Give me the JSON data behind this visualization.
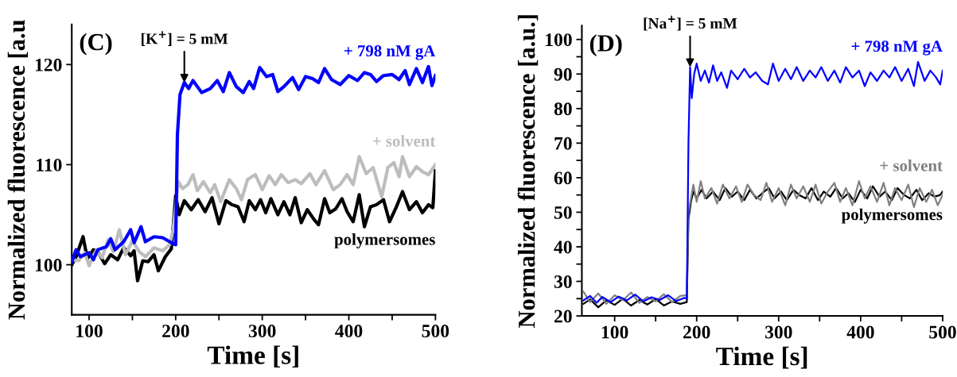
{
  "chart_data": [
    {
      "type": "line",
      "xlabel": "Time [s]",
      "ylabel": "Normalized fluorescence [a.u",
      "xlim": [
        80,
        500
      ],
      "ylim": [
        95,
        124
      ],
      "xticks": [
        100,
        {
          "value": 150,
          "label": null
        },
        200,
        {
          "value": 250,
          "label": null
        },
        300,
        {
          "value": 350,
          "label": null
        },
        400,
        {
          "value": 450,
          "label": null
        },
        500
      ],
      "yticks": [
        100,
        110,
        120
      ],
      "grid": false,
      "legend": false,
      "marker": "none",
      "line_style": "solid",
      "annotations": [
        "(C)",
        {
          "text": "[K$^{+}$] = 5 mM",
          "x": 210,
          "y": 118.2
        }
      ],
      "series": [
        {
          "name": "+ 798 nM gA",
          "color": "#0000ff",
          "x": [
            80,
            85,
            90,
            100,
            105,
            110,
            120,
            125,
            130,
            140,
            148,
            152,
            160,
            165,
            175,
            185,
            195,
            200,
            202,
            205,
            210,
            215,
            220,
            230,
            240,
            248,
            255,
            262,
            270,
            278,
            285,
            290,
            297,
            305,
            312,
            318,
            325,
            335,
            342,
            350,
            358,
            365,
            372,
            380,
            390,
            400,
            410,
            418,
            425,
            432,
            440,
            450,
            458,
            465,
            470,
            478,
            485,
            492,
            496,
            500
          ],
          "values": [
            100.3,
            101.5,
            100.8,
            101.2,
            100.5,
            101.5,
            101.8,
            102.6,
            101.5,
            102.3,
            103.5,
            102.2,
            103.8,
            102.3,
            102.8,
            102.7,
            102.2,
            102.0,
            113,
            117,
            118.2,
            117.6,
            118.4,
            117.2,
            117.6,
            118.4,
            117.3,
            119.2,
            117.8,
            117.2,
            118.3,
            117.6,
            119.7,
            118.8,
            119.0,
            117.3,
            117.8,
            118.7,
            117.5,
            118.8,
            118.6,
            118.2,
            119.6,
            118.5,
            118.0,
            118.9,
            118.4,
            119.2,
            119.0,
            118.3,
            118.9,
            119.0,
            118.5,
            119.4,
            118.0,
            119.6,
            118.2,
            119.8,
            117.9,
            118.9
          ]
        },
        {
          "name": "+ solvent",
          "color": "#bdbdbd",
          "x": [
            80,
            88,
            95,
            100,
            108,
            115,
            122,
            128,
            135,
            142,
            150,
            158,
            165,
            175,
            185,
            193,
            197,
            200,
            203,
            208,
            214,
            220,
            225,
            232,
            240,
            245,
            252,
            262,
            270,
            276,
            283,
            292,
            300,
            308,
            315,
            322,
            330,
            338,
            345,
            355,
            362,
            372,
            382,
            390,
            398,
            405,
            412,
            420,
            428,
            438,
            445,
            452,
            458,
            462,
            470,
            478,
            485,
            492,
            500
          ],
          "values": [
            100.5,
            100.4,
            101.2,
            99.9,
            101.4,
            100.7,
            102.5,
            101.3,
            103.5,
            101.0,
            102.4,
            101.3,
            100.8,
            101.7,
            101.4,
            102.0,
            103.5,
            105.8,
            108.3,
            107.6,
            108.0,
            109.0,
            107.4,
            108.3,
            107.2,
            108.0,
            106.3,
            108.5,
            107.6,
            106.5,
            108.5,
            109.0,
            107.5,
            108.9,
            108.0,
            109.0,
            108.2,
            108.5,
            108.1,
            109.1,
            108.0,
            109.4,
            107.5,
            108.0,
            109.0,
            108.0,
            110.8,
            109.1,
            109.7,
            106.8,
            109.7,
            110.2,
            108.8,
            110.8,
            108.8,
            109.8,
            109.3,
            109.0,
            110.0
          ]
        },
        {
          "name": "polymersomes",
          "color": "#000000",
          "x": [
            80,
            85,
            93,
            98,
            105,
            110,
            118,
            125,
            133,
            140,
            148,
            152,
            156,
            162,
            168,
            175,
            180,
            188,
            195,
            200,
            204,
            210,
            218,
            226,
            234,
            242,
            250,
            258,
            265,
            272,
            279,
            285,
            292,
            298,
            304,
            310,
            318,
            325,
            332,
            338,
            345,
            352,
            360,
            365,
            372,
            378,
            385,
            392,
            398,
            405,
            412,
            418,
            425,
            432,
            440,
            447,
            455,
            462,
            470,
            478,
            485,
            492,
            497,
            500
          ],
          "values": [
            100.0,
            100.8,
            102.8,
            100.6,
            101.5,
            101.3,
            100.1,
            101.0,
            100.5,
            101.7,
            100.9,
            101.4,
            98.4,
            100.4,
            100.3,
            101.0,
            99.4,
            100.8,
            101.6,
            106.9,
            105.0,
            106.4,
            105.5,
            106.5,
            105.3,
            106.7,
            104.1,
            106.4,
            106.0,
            105.8,
            104.3,
            106.4,
            105.5,
            106.5,
            105.2,
            106.6,
            105.0,
            106.3,
            105.0,
            106.7,
            104.2,
            105.5,
            104.5,
            104.0,
            106.6,
            105.2,
            105.6,
            106.6,
            105.3,
            104.3,
            107.0,
            103.8,
            105.8,
            106.0,
            106.5,
            104.3,
            105.8,
            107.3,
            105.5,
            106.3,
            105.2,
            106.0,
            105.7,
            109.4
          ]
        }
      ]
    },
    {
      "type": "line",
      "xlabel": "Time [s]",
      "ylabel": "Normalized fluorescence [a.u.]",
      "xlim": [
        60,
        500
      ],
      "ylim": [
        20,
        104
      ],
      "xticks": [
        100,
        {
          "value": 150,
          "label": null
        },
        200,
        {
          "value": 250,
          "label": null
        },
        300,
        {
          "value": 350,
          "label": null
        },
        400,
        {
          "value": 450,
          "label": null
        },
        500
      ],
      "yticks": [
        20,
        {
          "value": 25,
          "label": null
        },
        30,
        {
          "value": 35,
          "label": null
        },
        40,
        {
          "value": 45,
          "label": null
        },
        50,
        {
          "value": 55,
          "label": null
        },
        60,
        {
          "value": 65,
          "label": null
        },
        70,
        {
          "value": 75,
          "label": null
        },
        80,
        {
          "value": 85,
          "label": null
        },
        90,
        {
          "value": 95,
          "label": null
        },
        100
      ],
      "grid": false,
      "legend": false,
      "marker": "none",
      "line_style": "solid",
      "annotations": [
        "(D)",
        {
          "text": "[Na$^{+}$] = 5 mM",
          "x": 192,
          "y": 92
        }
      ],
      "series": [
        {
          "name": "+ 798 nM gA",
          "color": "#0000ff",
          "x": [
            62,
            70,
            78,
            85,
            95,
            105,
            115,
            125,
            135,
            145,
            155,
            165,
            175,
            185,
            188,
            190,
            192,
            194,
            197,
            200,
            205,
            210,
            215,
            220,
            225,
            230,
            237,
            242,
            250,
            258,
            265,
            272,
            280,
            287,
            293,
            300,
            308,
            315,
            322,
            330,
            338,
            345,
            352,
            360,
            368,
            375,
            382,
            390,
            398,
            405,
            412,
            420,
            428,
            435,
            442,
            450,
            458,
            465,
            470,
            478,
            485,
            492,
            497,
            500
          ],
          "values": [
            24.5,
            25.8,
            23.8,
            25.5,
            24.0,
            25.6,
            24.5,
            26.2,
            24.2,
            25.4,
            24.6,
            26.0,
            24.3,
            25.2,
            25.0,
            70,
            92,
            83,
            90,
            93,
            88,
            91,
            87.5,
            92.5,
            88,
            90.5,
            86,
            91,
            88.5,
            91.5,
            89,
            90.5,
            88,
            87,
            93,
            88,
            91.5,
            88.5,
            92,
            88,
            91,
            89,
            92,
            88,
            91,
            87.5,
            92,
            89,
            91,
            86.5,
            90.5,
            88,
            91,
            89,
            92,
            88,
            91.5,
            86.5,
            93.5,
            88,
            91,
            89,
            87,
            91
          ]
        },
        {
          "name": "+ solvent",
          "color": "#808080",
          "x": [
            62,
            70,
            80,
            90,
            100,
            110,
            120,
            130,
            140,
            150,
            160,
            170,
            180,
            188,
            190,
            193,
            196,
            200,
            205,
            210,
            218,
            225,
            232,
            240,
            248,
            255,
            262,
            270,
            278,
            285,
            292,
            300,
            308,
            315,
            322,
            330,
            338,
            345,
            352,
            360,
            368,
            375,
            382,
            390,
            398,
            405,
            412,
            420,
            428,
            435,
            442,
            450,
            458,
            465,
            472,
            480,
            487,
            494,
            500
          ],
          "values": [
            27.0,
            24.0,
            26.5,
            23.5,
            26.0,
            24.5,
            26.8,
            23.8,
            25.5,
            24.2,
            26.3,
            24.0,
            25.8,
            26.0,
            50,
            54,
            58,
            53,
            59,
            54,
            57,
            52.5,
            58,
            54,
            57.5,
            53,
            58,
            55,
            53.5,
            58.5,
            53,
            57,
            52,
            58,
            54,
            57.5,
            53,
            58,
            52.5,
            56,
            58.5,
            53,
            57,
            52,
            59,
            54,
            57.5,
            53,
            58.5,
            52,
            57,
            53.5,
            58,
            51.5,
            57,
            53,
            56.5,
            52,
            55
          ]
        },
        {
          "name": "polymersomes",
          "color": "#000000",
          "x": [
            62,
            70,
            80,
            90,
            100,
            110,
            120,
            130,
            140,
            150,
            160,
            170,
            180,
            188,
            190,
            193,
            196,
            200,
            206,
            212,
            220,
            228,
            235,
            243,
            250,
            258,
            265,
            273,
            280,
            288,
            295,
            303,
            310,
            318,
            325,
            333,
            340,
            348,
            355,
            363,
            370,
            378,
            385,
            393,
            400,
            408,
            415,
            423,
            430,
            438,
            445,
            453,
            460,
            468,
            475,
            483,
            490,
            497,
            500
          ],
          "values": [
            23.5,
            24.8,
            22.5,
            24.5,
            23.2,
            25.0,
            23.0,
            24.6,
            23.3,
            24.9,
            23.0,
            24.2,
            23.5,
            24.0,
            48,
            53,
            56,
            54,
            56.5,
            54,
            56,
            53.5,
            57,
            54.5,
            56,
            53.5,
            56.5,
            54,
            55.5,
            57,
            54,
            56,
            53.5,
            56.5,
            55,
            54,
            57,
            53.5,
            56,
            54.5,
            57,
            54,
            55.5,
            53,
            56.5,
            54,
            57.5,
            54.5,
            56,
            53.5,
            57,
            55,
            54,
            56.5,
            53.5,
            55.5,
            54.5,
            55,
            56
          ]
        }
      ]
    }
  ]
}
